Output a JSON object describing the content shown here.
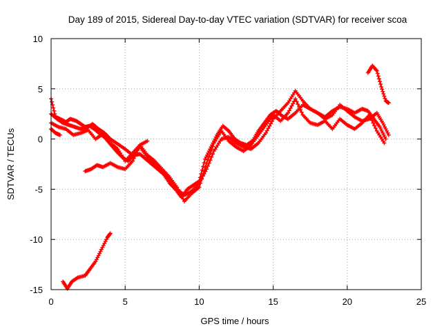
{
  "chart_data": {
    "type": "scatter",
    "title": "Day 189 of 2015, Sidereal Day-to-day VTEC variation (SDTVAR) for receiver scoa",
    "xlabel": "GPS time / hours",
    "ylabel": "SDTVAR / TECUs",
    "xlim": [
      0,
      25
    ],
    "ylim": [
      -15,
      10
    ],
    "xticks": [
      0,
      5,
      10,
      15,
      20,
      25
    ],
    "yticks": [
      -15,
      -10,
      -5,
      0,
      5,
      10
    ],
    "grid": true,
    "marker": "+",
    "color": "#ff0000",
    "series": [
      {
        "name": "track-1",
        "x": [
          0.0,
          0.3,
          0.6,
          1.0,
          1.3,
          1.7,
          2.0,
          2.3,
          2.6,
          3.0,
          3.3,
          3.6,
          4.0,
          4.4,
          4.8,
          5.2,
          5.6,
          6.0,
          6.4,
          6.8,
          7.2,
          7.6,
          8.0,
          8.4,
          8.8,
          9.2,
          9.6,
          10.0,
          10.4,
          10.8,
          11.2,
          11.6,
          12.0,
          12.4,
          12.8,
          13.2,
          13.6,
          14.0,
          14.4,
          14.8,
          15.2,
          15.6,
          16.0,
          16.5,
          17.0,
          17.5,
          18.0,
          18.5,
          19.0,
          19.5,
          20.0,
          20.5,
          21.0,
          21.4,
          21.8,
          22.2,
          22.6
        ],
        "y": [
          4.0,
          2.2,
          2.0,
          1.7,
          2.0,
          1.8,
          1.5,
          1.2,
          1.3,
          0.9,
          0.5,
          0.2,
          -0.5,
          -1.2,
          -1.8,
          -2.2,
          -1.6,
          -1.5,
          -2.0,
          -2.5,
          -3.0,
          -3.5,
          -4.4,
          -5.0,
          -5.8,
          -5.0,
          -4.6,
          -4.2,
          -2.0,
          -0.8,
          0.4,
          1.3,
          0.8,
          0.0,
          -0.4,
          -0.6,
          -0.2,
          0.8,
          1.6,
          2.4,
          2.8,
          2.3,
          2.0,
          2.6,
          3.4,
          3.0,
          2.6,
          2.2,
          2.8,
          3.2,
          3.0,
          2.6,
          3.0,
          2.8,
          2.0,
          1.2,
          0.0
        ]
      },
      {
        "name": "track-2",
        "x": [
          0.0,
          0.4,
          0.8,
          1.2,
          1.6,
          2.0,
          2.4,
          2.8,
          3.2,
          3.6,
          4.0,
          4.5,
          5.0,
          5.5,
          6.0,
          6.5,
          7.0,
          7.5,
          8.0,
          8.5,
          9.0,
          9.5,
          10.0,
          10.5,
          11.0,
          11.5,
          12.0,
          12.5,
          13.0,
          13.5,
          14.0,
          14.5,
          15.0,
          15.5,
          16.0,
          16.5,
          17.0,
          17.5,
          18.0,
          18.5,
          19.0,
          19.5,
          20.0,
          20.5,
          21.0,
          21.5,
          22.0,
          22.4,
          22.8
        ],
        "y": [
          2.5,
          2.0,
          1.6,
          1.4,
          1.2,
          1.0,
          1.1,
          1.5,
          1.0,
          0.6,
          0.0,
          -0.5,
          -1.0,
          -1.6,
          -0.8,
          -1.8,
          -2.5,
          -3.2,
          -4.2,
          -5.0,
          -5.6,
          -5.2,
          -4.4,
          -3.0,
          -1.2,
          0.0,
          0.2,
          -0.4,
          -0.8,
          -1.0,
          -0.4,
          0.6,
          2.0,
          2.8,
          3.6,
          4.8,
          3.8,
          3.0,
          2.6,
          2.0,
          2.4,
          3.4,
          2.8,
          2.2,
          1.8,
          2.0,
          2.6,
          1.6,
          0.4
        ]
      },
      {
        "name": "track-3",
        "x": [
          0.0,
          0.5,
          1.0,
          1.5,
          2.0,
          2.5,
          3.0,
          3.5,
          4.0,
          4.5,
          5.0,
          5.5,
          6.0,
          6.5,
          7.0,
          7.5,
          8.0,
          8.5,
          9.0,
          9.5,
          10.0,
          10.5,
          11.0,
          11.5,
          12.0,
          12.5,
          13.0,
          13.5,
          14.0,
          14.5,
          15.0,
          15.5,
          16.0,
          16.5,
          17.0,
          17.5,
          18.0,
          18.5,
          19.0,
          19.5,
          20.0,
          20.5,
          21.0,
          21.5,
          22.0,
          22.5
        ],
        "y": [
          1.6,
          1.2,
          1.0,
          0.4,
          0.6,
          0.9,
          0.0,
          0.5,
          -0.4,
          -1.0,
          -2.2,
          -1.4,
          -0.6,
          -1.6,
          -2.2,
          -3.0,
          -3.8,
          -4.8,
          -6.2,
          -5.4,
          -4.8,
          -2.4,
          -0.4,
          0.8,
          -0.2,
          -0.8,
          -1.2,
          -0.6,
          0.4,
          1.4,
          2.4,
          1.8,
          2.6,
          4.0,
          2.4,
          1.6,
          1.4,
          1.8,
          1.0,
          2.0,
          1.4,
          1.0,
          1.6,
          2.4,
          0.8,
          -0.4
        ]
      },
      {
        "name": "track-4",
        "x": [
          0.0,
          0.3,
          0.6
        ],
        "y": [
          1.0,
          0.6,
          0.4
        ]
      },
      {
        "name": "track-5",
        "x": [
          2.3,
          2.7,
          3.1,
          3.5,
          4.0,
          4.5,
          5.0,
          5.5,
          6.0,
          6.5
        ],
        "y": [
          -3.2,
          -3.0,
          -2.6,
          -2.8,
          -2.4,
          -2.8,
          -3.0,
          -2.2,
          -0.6,
          -0.2
        ]
      },
      {
        "name": "track-6",
        "x": [
          0.8,
          1.1,
          1.4,
          1.8,
          2.3,
          2.6,
          3.0,
          3.4,
          3.8,
          4.0
        ],
        "y": [
          -14.2,
          -14.9,
          -14.2,
          -13.8,
          -13.6,
          -13.0,
          -12.2,
          -11.0,
          -9.8,
          -9.4
        ]
      },
      {
        "name": "track-7",
        "x": [
          21.4,
          21.7,
          22.0,
          22.3,
          22.6,
          22.8
        ],
        "y": [
          6.6,
          7.3,
          6.8,
          5.2,
          3.8,
          3.6
        ]
      }
    ]
  }
}
